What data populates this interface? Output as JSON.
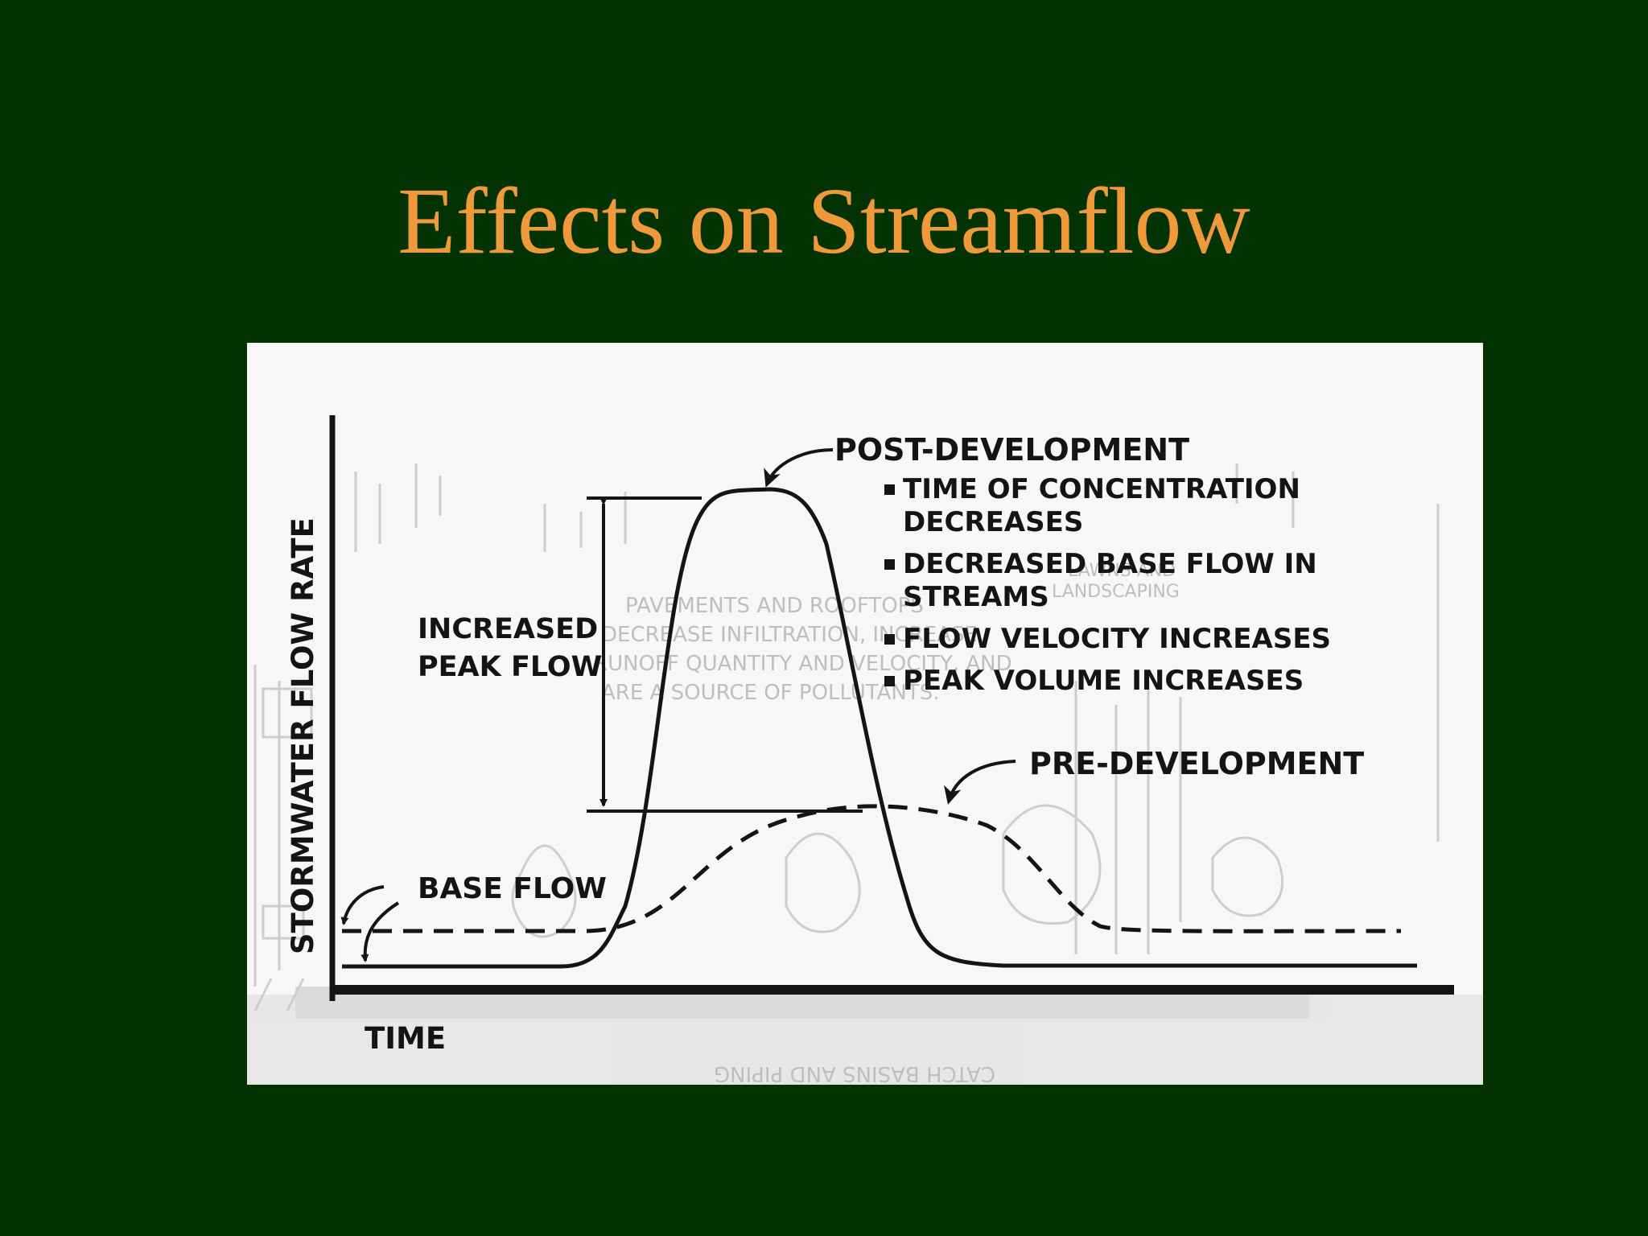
{
  "slide": {
    "title": "Effects on Streamflow",
    "background_color": "#033303",
    "title_color": "#f0993a"
  },
  "diagram": {
    "y_axis_label": "STORMWATER FLOW RATE",
    "x_axis_label": "TIME",
    "post_development_label": "POST-DEVELOPMENT",
    "post_development_notes": [
      {
        "line1": "TIME OF CONCENTRATION",
        "line2": "DECREASES"
      },
      {
        "line1": "DECREASED BASE FLOW IN",
        "line2": "STREAMS"
      },
      {
        "line1": "FLOW VELOCITY INCREASES",
        "line2": ""
      },
      {
        "line1": "PEAK VOLUME INCREASES",
        "line2": ""
      }
    ],
    "pre_development_label": "PRE-DEVELOPMENT",
    "increased_peak_flow_label": {
      "line1": "INCREASED",
      "line2": "PEAK FLOW"
    },
    "base_flow_label": "BASE FLOW",
    "background_text": [
      "PAVEMENTS AND ROOFTOPS",
      "DECREASE INFILTRATION, INCREASE",
      "RUNOFF QUANTITY AND VELOCITY, AND",
      "ARE A SOURCE OF POLLUTANTS.",
      "LAWNS AND",
      "LANDSCAPING",
      "CATCH BASINS AND PIPING"
    ]
  }
}
